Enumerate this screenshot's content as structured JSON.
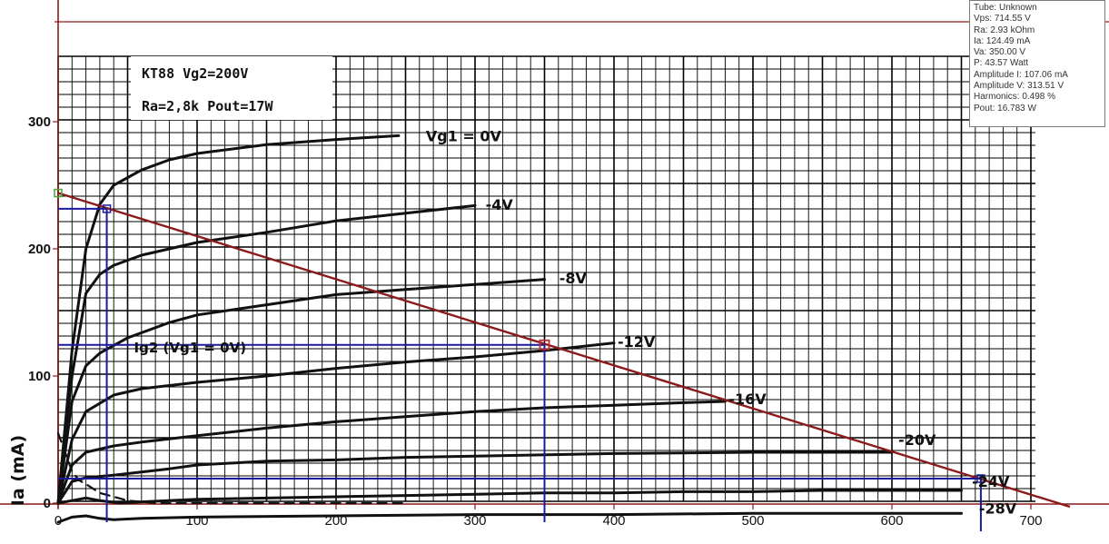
{
  "chart_data": {
    "type": "line",
    "title_line1": "KT88 Vg2=200V",
    "title_line2": "Ra=2,8k Pout=17W",
    "ylabel": "Ia (mA)",
    "xlabel": "",
    "xlim": [
      0,
      700
    ],
    "ylim": [
      0,
      350
    ],
    "x_ticks": [
      "0",
      "100",
      "200",
      "300",
      "400",
      "500",
      "600",
      "700"
    ],
    "y_ticks": [
      "0",
      "100",
      "200",
      "300"
    ],
    "grid": true,
    "curve_labels": [
      {
        "text": "Vg1 = 0V",
        "x": 262,
        "y": 289
      },
      {
        "text": "-4V",
        "x": 305,
        "y": 235
      },
      {
        "text": "-8V",
        "x": 358,
        "y": 177
      },
      {
        "text": "-12V",
        "x": 400,
        "y": 127
      },
      {
        "text": "-16V",
        "x": 480,
        "y": 82
      },
      {
        "text": "-20V",
        "x": 602,
        "y": 50
      },
      {
        "text": "-24V",
        "x": 655,
        "y": 17
      },
      {
        "text": "-28V",
        "x": 660,
        "y": -4
      },
      {
        "text": "Ig2 (Vg1 = 0V)",
        "x": 52,
        "y": 123
      }
    ],
    "series": [
      {
        "name": "Vg1 = 0V",
        "x": [
          0,
          10,
          20,
          30,
          40,
          60,
          80,
          100,
          150,
          200,
          245
        ],
        "y": [
          0,
          120,
          200,
          235,
          250,
          262,
          270,
          275,
          282,
          286,
          289
        ]
      },
      {
        "name": "-4V",
        "x": [
          0,
          10,
          20,
          30,
          40,
          60,
          100,
          150,
          200,
          250,
          300
        ],
        "y": [
          0,
          100,
          165,
          180,
          187,
          195,
          205,
          213,
          222,
          228,
          234
        ]
      },
      {
        "name": "-8V",
        "x": [
          0,
          10,
          20,
          30,
          50,
          80,
          100,
          150,
          200,
          250,
          300,
          350
        ],
        "y": [
          0,
          80,
          108,
          118,
          130,
          142,
          148,
          156,
          164,
          168,
          172,
          176
        ]
      },
      {
        "name": "-12V",
        "x": [
          0,
          10,
          20,
          40,
          60,
          100,
          150,
          200,
          250,
          300,
          350,
          400
        ],
        "y": [
          0,
          50,
          72,
          85,
          90,
          95,
          100,
          106,
          111,
          115,
          120,
          126
        ]
      },
      {
        "name": "-16V",
        "x": [
          0,
          10,
          20,
          40,
          60,
          100,
          150,
          200,
          250,
          300,
          350,
          400,
          450,
          480
        ],
        "y": [
          0,
          30,
          40,
          45,
          48,
          53,
          59,
          64,
          68,
          72,
          75,
          77,
          79,
          80
        ]
      },
      {
        "name": "-20V",
        "x": [
          0,
          10,
          20,
          40,
          80,
          100,
          150,
          200,
          250,
          300,
          400,
          500,
          600
        ],
        "y": [
          0,
          17,
          20,
          22,
          27,
          30,
          33,
          34,
          36,
          37,
          39,
          40,
          40
        ]
      },
      {
        "name": "-24V",
        "x": [
          0,
          10,
          20,
          30,
          45,
          60,
          100,
          150,
          200,
          250,
          300,
          350,
          400,
          450,
          500,
          550,
          600,
          650
        ],
        "y": [
          0,
          2,
          4,
          2,
          0,
          1,
          3,
          4,
          5,
          6,
          7,
          8,
          8,
          9,
          9,
          10,
          10,
          10
        ]
      },
      {
        "name": "-28V",
        "x": [
          0,
          10,
          20,
          30,
          40,
          60,
          100,
          200,
          300,
          400,
          500,
          600,
          650
        ],
        "y": [
          -15,
          -11,
          -10,
          -12,
          -13,
          -12,
          -11,
          -10,
          -9,
          -9,
          -8,
          -8,
          -8
        ]
      },
      {
        "name": "Ig2 (Vg1 = 0V)",
        "x": [
          0,
          5,
          10,
          15,
          20,
          30,
          40,
          50,
          70,
          100,
          150,
          200,
          250
        ],
        "y": [
          55,
          40,
          25,
          18,
          15,
          8,
          5,
          2,
          0,
          0,
          0,
          0,
          0
        ]
      }
    ],
    "load_line": {
      "x": [
        0,
        715
      ],
      "y": [
        243.9,
        0
      ]
    },
    "operating_point": {
      "x": 350,
      "y": 124.49
    },
    "guide_points": [
      {
        "x": 0,
        "y": 243.9
      },
      {
        "x": 35,
        "y": 231.5
      },
      {
        "x": 664,
        "y": 0
      }
    ],
    "colors": {
      "grid": "#000000",
      "curves": "#111111",
      "load_line": "#8b1a1a",
      "markers": "#1a1a9c",
      "op_point": "#b5293a",
      "start_marker": "#4aa832",
      "frame": "#8b1a1a"
    }
  },
  "info_panel": {
    "lines": [
      "Tube: Unknown",
      "Vps: 714.55 V",
      "Ra: 2.93 kOhm",
      "Ia: 124.49 mA",
      "Va: 350.00 V",
      "P: 43.57 Watt",
      "Amplitude I: 107.06 mA",
      "Amplitude V: 313.51 V",
      "Harmonics: 0.498 %",
      "Pout: 16.783 W"
    ]
  }
}
